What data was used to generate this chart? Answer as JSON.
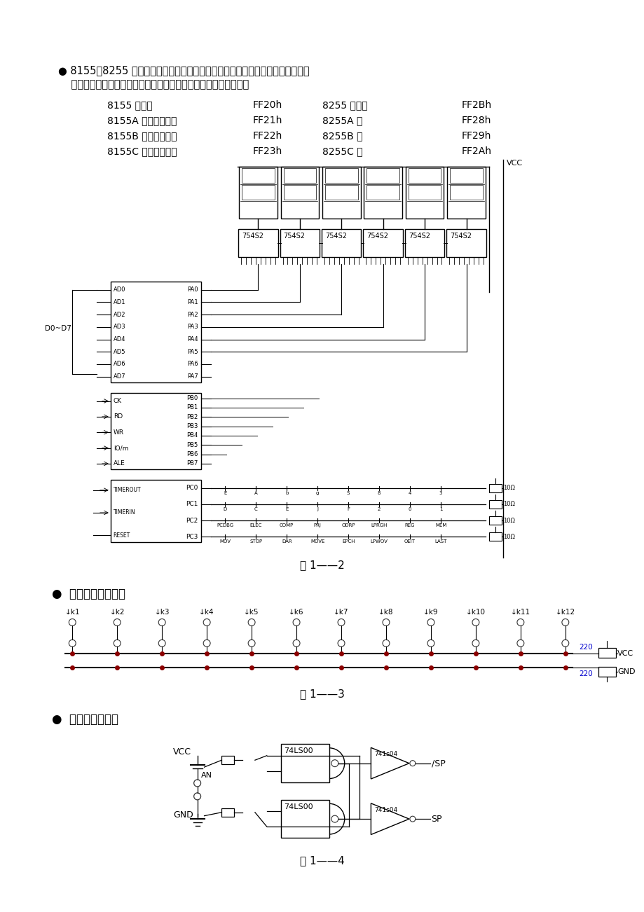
{
  "bg_color": "#ffffff",
  "page_width": 9.2,
  "page_height": 13.02,
  "text_color": "#000000",
  "blue_color": "#0000cd",
  "red_color": "#8b0000",
  "line1": "● 8155、8255 接口地址及连线图：（系统内部给定，占用存储区一页地址，内程",
  "line2": "    序内数据工作模式有效，字形口通过反相驱动器接共阴极数码管）",
  "table_rows": [
    [
      "8155 控制口",
      "FF20h",
      "8255 控制口",
      "FF2Bh"
    ],
    [
      "8155A 口（字位口）",
      "FF21h",
      "8255A 口",
      "FF28h"
    ],
    [
      "8155B 口（字型口）",
      "FF22h",
      "8255B 口",
      "FF29h"
    ],
    [
      "8155C 口（键扫口）",
      "FF23h",
      "8255C 口",
      "FF2Ah"
    ]
  ],
  "fig1_caption": "图 1——2",
  "sec2_title": "●  逻辑电平开关电路",
  "switch_labels": [
    "k1",
    "k2",
    "k3",
    "k4",
    "k5",
    "k6",
    "k7",
    "k8",
    "k9",
    "k10",
    "k11",
    "k12"
  ],
  "fig3_caption": "图 1——3",
  "sec3_title": "●  单脉冲发生电路",
  "fig4_caption": "图 1——4"
}
